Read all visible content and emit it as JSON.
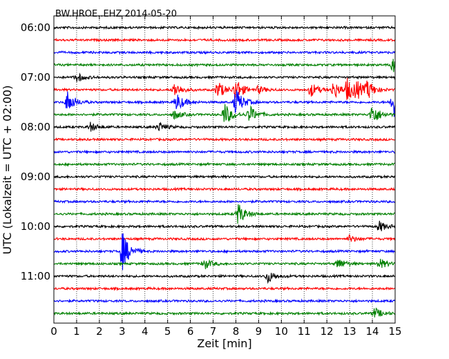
{
  "chart_data": {
    "type": "line",
    "title": "BW.HROE..EHZ 2014-05-20",
    "xlabel": "Zeit  [min]",
    "ylabel": "UTC (Lokalzeit = UTC + 02:00)",
    "xlim": [
      0,
      15
    ],
    "x_ticks": [
      "0",
      "1",
      "2",
      "3",
      "4",
      "5",
      "6",
      "7",
      "8",
      "9",
      "10",
      "11",
      "12",
      "13",
      "14",
      "15"
    ],
    "y_ticks": [
      "06:00",
      "07:00",
      "08:00",
      "09:00",
      "10:00",
      "11:00"
    ],
    "grid": "vertical dotted",
    "trace_minutes_each": 15,
    "colors": [
      "#000000",
      "#ff0000",
      "#0000ff",
      "#008000"
    ],
    "traces": [
      {
        "start": "06:00",
        "color": "#000000",
        "events": []
      },
      {
        "start": "06:15",
        "color": "#ff0000",
        "events": []
      },
      {
        "start": "06:30",
        "color": "#0000ff",
        "events": []
      },
      {
        "start": "06:45",
        "color": "#008000",
        "events": [
          [
            14.9,
            0.8
          ]
        ]
      },
      {
        "start": "07:00",
        "color": "#000000",
        "events": [
          [
            1.0,
            0.5
          ]
        ]
      },
      {
        "start": "07:15",
        "color": "#ff0000",
        "events": [
          [
            5.3,
            0.8
          ],
          [
            7.2,
            1.0
          ],
          [
            8.0,
            1.2
          ],
          [
            9.0,
            0.4
          ],
          [
            11.3,
            0.8
          ],
          [
            12.3,
            1.0
          ],
          [
            12.9,
            1.2
          ],
          [
            13.3,
            0.9
          ],
          [
            13.8,
            0.9
          ]
        ]
      },
      {
        "start": "07:30",
        "color": "#0000ff",
        "events": [
          [
            0.6,
            1.2
          ],
          [
            5.4,
            1.0
          ],
          [
            8.0,
            1.5
          ],
          [
            14.9,
            2.0
          ]
        ]
      },
      {
        "start": "07:45",
        "color": "#008000",
        "events": [
          [
            5.3,
            0.5
          ],
          [
            7.5,
            1.3
          ],
          [
            8.6,
            1.0
          ],
          [
            14.0,
            1.2
          ]
        ]
      },
      {
        "start": "08:00",
        "color": "#000000",
        "events": [
          [
            1.6,
            0.5
          ],
          [
            4.6,
            0.5
          ]
        ]
      },
      {
        "start": "08:15",
        "color": "#ff0000",
        "events": []
      },
      {
        "start": "08:30",
        "color": "#0000ff",
        "events": []
      },
      {
        "start": "08:45",
        "color": "#008000",
        "events": []
      },
      {
        "start": "09:00",
        "color": "#000000",
        "events": []
      },
      {
        "start": "09:15",
        "color": "#ff0000",
        "events": []
      },
      {
        "start": "09:30",
        "color": "#0000ff",
        "events": []
      },
      {
        "start": "09:45",
        "color": "#008000",
        "events": [
          [
            8.1,
            1.2
          ]
        ]
      },
      {
        "start": "10:00",
        "color": "#000000",
        "events": [
          [
            14.3,
            0.6
          ]
        ]
      },
      {
        "start": "10:15",
        "color": "#ff0000",
        "events": [
          [
            13.0,
            0.4
          ]
        ]
      },
      {
        "start": "10:30",
        "color": "#0000ff",
        "events": [
          [
            3.0,
            2.2
          ]
        ]
      },
      {
        "start": "10:45",
        "color": "#008000",
        "events": [
          [
            6.6,
            0.6
          ],
          [
            12.5,
            0.6
          ],
          [
            14.3,
            0.6
          ]
        ]
      },
      {
        "start": "11:00",
        "color": "#000000",
        "events": [
          [
            9.4,
            0.7
          ]
        ]
      },
      {
        "start": "11:15",
        "color": "#ff0000",
        "events": []
      },
      {
        "start": "11:30",
        "color": "#0000ff",
        "events": []
      },
      {
        "start": "11:45",
        "color": "#008000",
        "events": [
          [
            14.1,
            0.6
          ]
        ]
      }
    ]
  }
}
